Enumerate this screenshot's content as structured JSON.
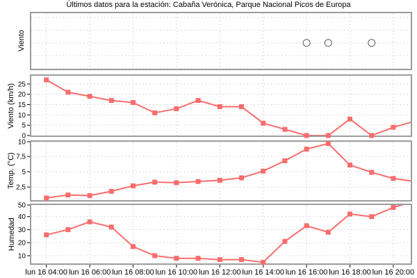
{
  "title": "Últimos datos para la estación: Cabaña Verónica, Parque Nacional Picos de Europa",
  "chart_data": {
    "type": "line",
    "title": "Últimos datos para la estación: Cabaña Verónica, Parque Nacional Picos de Europa",
    "grid": true,
    "legend": null,
    "line_color": "#f96c6c",
    "grid_color": "#d9d9d9",
    "frame_color": "#9c9c9c",
    "calm_circle_color": "#5f5f5f",
    "x_hours": [
      4,
      5,
      6,
      7,
      8,
      9,
      10,
      11,
      12,
      13,
      14,
      15,
      16,
      17,
      18,
      19,
      20,
      21
    ],
    "x_tick_hours": [
      4,
      6,
      8,
      10,
      12,
      14,
      16,
      18,
      20
    ],
    "x_tick_labels": [
      "lun 16 04:00",
      "lun 16 06:00",
      "lun 16 08:00",
      "lun 16 10:00",
      "lun 16 12:00",
      "lun 16 14:00",
      "lun 16 16:00",
      "lun 16 18:00",
      "lun 16 20:00"
    ],
    "panels": [
      {
        "id": "viento-direccion",
        "ylabel": "Viento",
        "yticks": [],
        "ytick_labels": [],
        "calm_hours": [
          16,
          17,
          19
        ]
      },
      {
        "id": "viento-velocidad",
        "ylabel": "Viento (km/h)",
        "yticks": [
          0,
          5,
          10,
          15,
          20,
          25
        ],
        "ytick_labels": [
          "0",
          "5",
          "10",
          "15",
          "20",
          "25"
        ],
        "ylim": [
          0,
          29
        ],
        "values": [
          27,
          21,
          19,
          17,
          16,
          11,
          13,
          17,
          14,
          14,
          6,
          3,
          0,
          0,
          8,
          0,
          4,
          7
        ]
      },
      {
        "id": "temperatura",
        "ylabel": "Temp. (°C)",
        "yticks": [
          2.5,
          5,
          7.5,
          10
        ],
        "ytick_labels": [
          "2,5",
          "5",
          "7,5",
          "10"
        ],
        "ylim": [
          0.35,
          9.9
        ],
        "values": [
          0.7,
          1.2,
          1.1,
          1.8,
          2.7,
          3.3,
          3.2,
          3.4,
          3.6,
          4.0,
          5.1,
          6.8,
          8.7,
          9.6,
          6.1,
          4.9,
          3.9,
          3.4
        ]
      },
      {
        "id": "humedad",
        "ylabel": "Humedad",
        "yticks": [
          10,
          20,
          30,
          40,
          50
        ],
        "ytick_labels": [
          "10",
          "20",
          "30",
          "40",
          "50"
        ],
        "ylim": [
          4.1,
          48.9
        ],
        "values": [
          26,
          30,
          36,
          32,
          17,
          10,
          8,
          8,
          7,
          7,
          5,
          21,
          33,
          28,
          42,
          40,
          47,
          52
        ]
      }
    ]
  }
}
